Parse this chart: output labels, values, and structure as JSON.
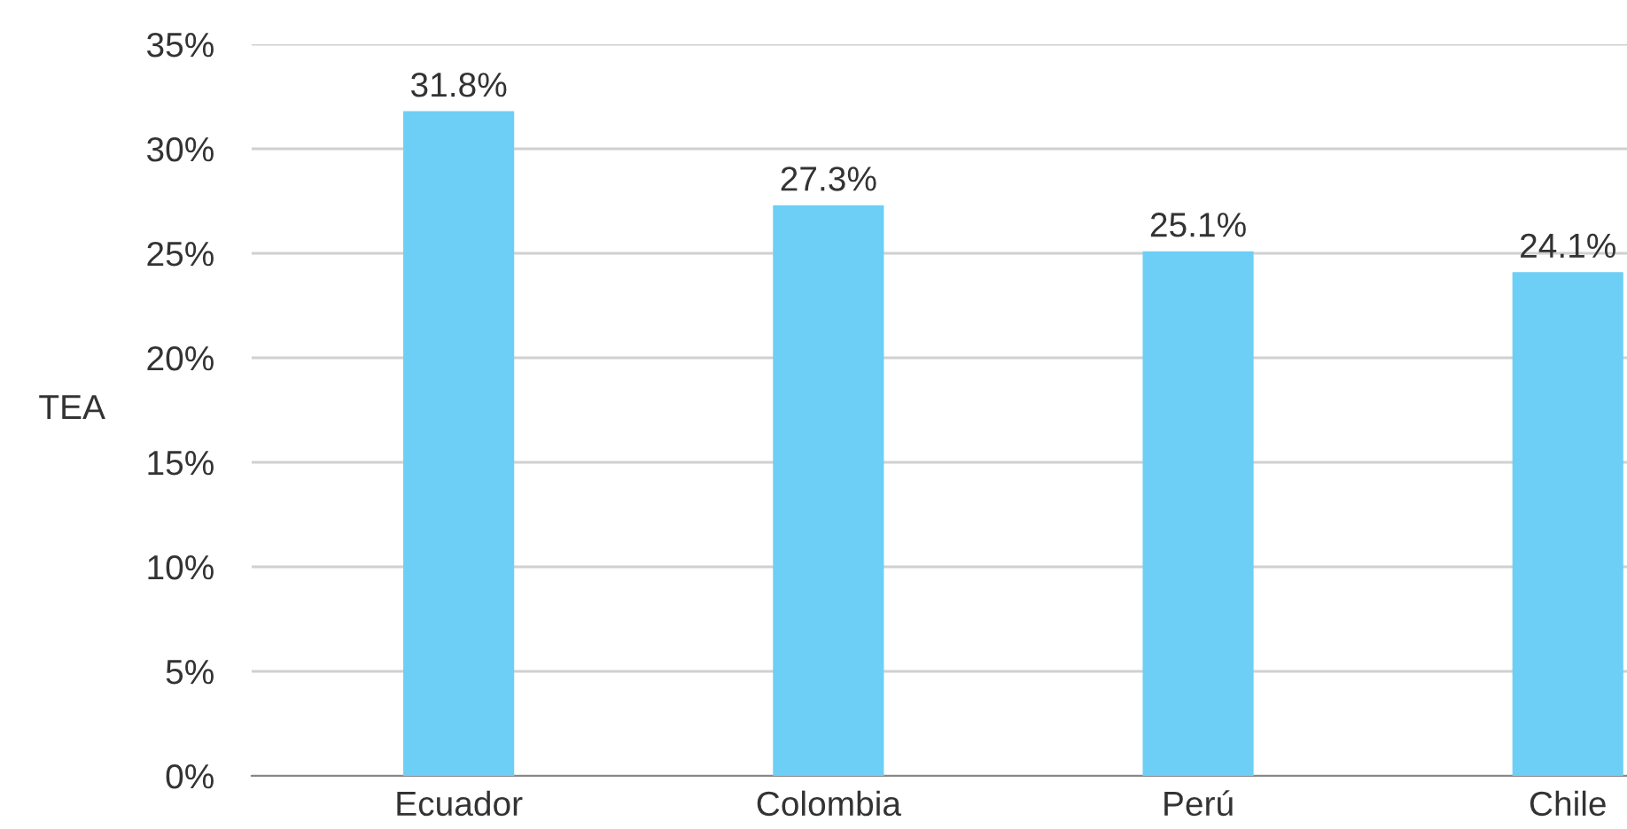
{
  "chart_data": {
    "type": "bar",
    "ylabel": "TEA",
    "categories": [
      "Ecuador",
      "Colombia",
      "Perú",
      "Chile"
    ],
    "values": [
      31.8,
      27.3,
      25.1,
      24.1
    ],
    "value_labels": [
      "31.8%",
      "27.3%",
      "25.1%",
      "24.1%"
    ],
    "color": "#6dcff6",
    "ylim": [
      0,
      35
    ],
    "yticks": [
      {
        "value": 0,
        "label": "0%"
      },
      {
        "value": 5,
        "label": "5%"
      },
      {
        "value": 10,
        "label": "10%"
      },
      {
        "value": 15,
        "label": "15%"
      },
      {
        "value": 20,
        "label": "20%"
      },
      {
        "value": 25,
        "label": "25%"
      },
      {
        "value": 30,
        "label": "30%"
      },
      {
        "value": 35,
        "label": "35%"
      }
    ],
    "grid": "y",
    "legend": false
  }
}
